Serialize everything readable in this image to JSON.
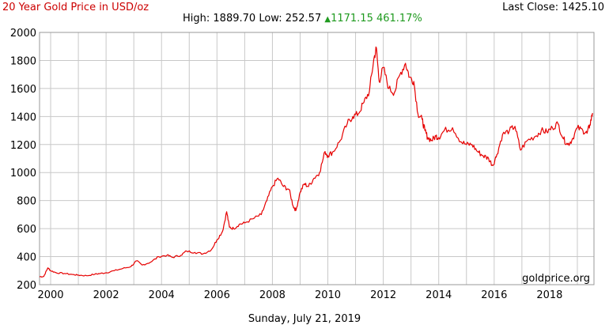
{
  "header": {
    "title": "20 Year Gold Price in USD/oz",
    "last_close_label": "Last Close:",
    "last_close_value": "1425.10",
    "high_label": "High:",
    "high_value": "1889.70",
    "low_label": "Low:",
    "low_value": "252.57",
    "change_arrow": "▲",
    "change_value": "1171.15",
    "change_pct": "461.17%"
  },
  "watermark": "goldprice.org",
  "footer_date": "Sunday, July 21, 2019",
  "colors": {
    "line": "#e60000",
    "title": "#cc0000",
    "change": "#1f9a1f",
    "grid": "#c8c8c8"
  },
  "chart_data": {
    "type": "line",
    "title": "20 Year Gold Price in USD/oz",
    "xlabel": "",
    "ylabel": "",
    "xlim": [
      1999.6,
      2019.6
    ],
    "ylim": [
      200,
      2000
    ],
    "x_ticks": [
      "2000",
      "2002",
      "2004",
      "2006",
      "2008",
      "2010",
      "2012",
      "2014",
      "2016",
      "2018"
    ],
    "y_ticks": [
      "200",
      "400",
      "600",
      "800",
      "1000",
      "1200",
      "1400",
      "1600",
      "1800",
      "2000"
    ],
    "grid": true,
    "series": [
      {
        "x": [
          1999.6,
          1999.75,
          1999.9,
          2000.0,
          2000.2,
          2000.5,
          2000.8,
          2001.0,
          2001.3,
          2001.6,
          2001.8,
          2002.0,
          2002.3,
          2002.6,
          2002.9,
          2003.1,
          2003.3,
          2003.6,
          2003.9,
          2004.2,
          2004.4,
          2004.7,
          2004.9,
          2005.2,
          2005.5,
          2005.8,
          2006.0,
          2006.2,
          2006.35,
          2006.45,
          2006.6,
          2006.8,
          2007.0,
          2007.3,
          2007.6,
          2007.8,
          2008.0,
          2008.2,
          2008.4,
          2008.6,
          2008.75,
          2008.85,
          2009.0,
          2009.15,
          2009.3,
          2009.5,
          2009.7,
          2009.9,
          2010.0,
          2010.2,
          2010.45,
          2010.7,
          2010.9,
          2011.1,
          2011.3,
          2011.5,
          2011.65,
          2011.75,
          2011.85,
          2012.0,
          2012.2,
          2012.4,
          2012.6,
          2012.8,
          2012.95,
          2013.1,
          2013.25,
          2013.4,
          2013.5,
          2013.6,
          2013.75,
          2013.9,
          2014.0,
          2014.2,
          2014.5,
          2014.8,
          2015.0,
          2015.2,
          2015.4,
          2015.6,
          2015.8,
          2015.95,
          2016.1,
          2016.3,
          2016.55,
          2016.75,
          2016.95,
          2017.2,
          2017.5,
          2017.7,
          2017.9,
          2018.1,
          2018.3,
          2018.5,
          2018.65,
          2018.8,
          2019.0,
          2019.2,
          2019.35,
          2019.45,
          2019.55
        ],
        "values": [
          257,
          258,
          320,
          300,
          285,
          280,
          272,
          268,
          264,
          275,
          280,
          285,
          300,
          315,
          330,
          370,
          340,
          360,
          400,
          410,
          395,
          410,
          440,
          430,
          420,
          450,
          520,
          580,
          720,
          610,
          600,
          630,
          640,
          670,
          700,
          800,
          900,
          960,
          900,
          880,
          760,
          730,
          860,
          920,
          900,
          960,
          1000,
          1150,
          1120,
          1150,
          1230,
          1350,
          1400,
          1420,
          1500,
          1580,
          1800,
          1890,
          1650,
          1750,
          1600,
          1570,
          1700,
          1780,
          1680,
          1650,
          1420,
          1380,
          1300,
          1250,
          1230,
          1260,
          1250,
          1300,
          1320,
          1220,
          1200,
          1200,
          1150,
          1120,
          1100,
          1050,
          1130,
          1270,
          1300,
          1330,
          1160,
          1230,
          1260,
          1300,
          1290,
          1320,
          1350,
          1240,
          1200,
          1230,
          1320,
          1300,
          1280,
          1340,
          1425
        ]
      }
    ]
  }
}
